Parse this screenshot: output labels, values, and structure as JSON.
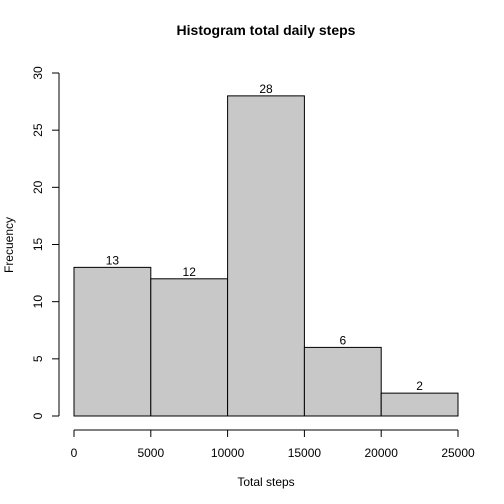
{
  "chart_data": {
    "type": "bar",
    "title": "Histogram total daily steps",
    "xlabel": "Total steps",
    "ylabel": "Frecuency",
    "bins": [
      {
        "from": 0,
        "to": 5000,
        "count": 13
      },
      {
        "from": 5000,
        "to": 10000,
        "count": 12
      },
      {
        "from": 10000,
        "to": 15000,
        "count": 28
      },
      {
        "from": 15000,
        "to": 20000,
        "count": 6
      },
      {
        "from": 20000,
        "to": 25000,
        "count": 2
      }
    ],
    "xlim": [
      0,
      25000
    ],
    "ylim": [
      0,
      30
    ],
    "x_ticks": [
      "0",
      "5000",
      "10000",
      "15000",
      "20000",
      "25000"
    ],
    "y_ticks": [
      "0",
      "5",
      "10",
      "15",
      "20",
      "25",
      "30"
    ],
    "bar_color": "#c8c8c8",
    "grid": false,
    "legend": "none"
  }
}
